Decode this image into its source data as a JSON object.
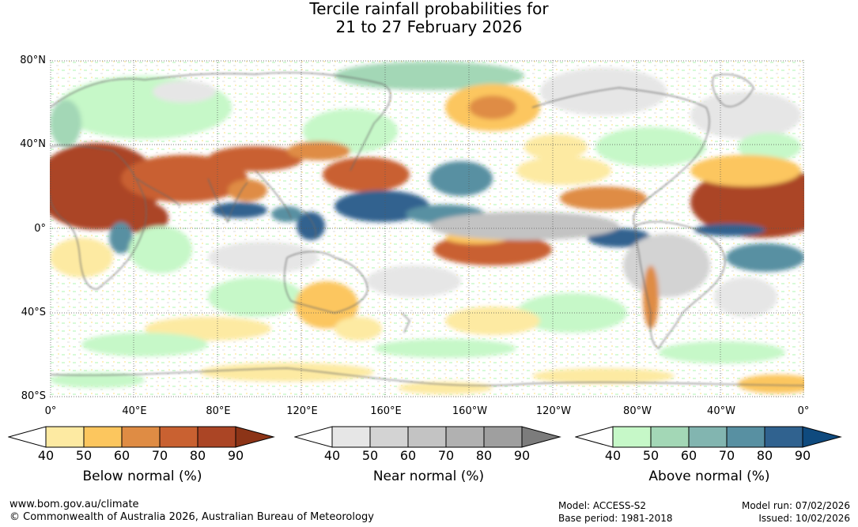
{
  "title": {
    "line1": "Tercile rainfall probabilities for",
    "line2": "21 to 27 February 2026"
  },
  "map": {
    "lat_labels": [
      "80°N",
      "40°N",
      "0°",
      "40°S",
      "80°S"
    ],
    "lon_labels": [
      "0°",
      "40°E",
      "80°E",
      "120°E",
      "160°E",
      "160°W",
      "120°W",
      "80°W",
      "40°W",
      "0°"
    ]
  },
  "legends": [
    {
      "title": "Below normal (%)",
      "ticks": [
        "40",
        "50",
        "60",
        "70",
        "80",
        "90"
      ],
      "colors": [
        "#ffffff",
        "#fdeaa2",
        "#fcc65e",
        "#df8c44",
        "#c96131",
        "#ab4525",
        "#8c3417"
      ]
    },
    {
      "title": "Near normal (%)",
      "ticks": [
        "40",
        "50",
        "60",
        "70",
        "80",
        "90"
      ],
      "colors": [
        "#ffffff",
        "#e6e6e6",
        "#d3d3d3",
        "#c3c3c3",
        "#b1b1b1",
        "#9f9f9f",
        "#7c7c7c"
      ]
    },
    {
      "title": "Above normal (%)",
      "ticks": [
        "40",
        "50",
        "60",
        "70",
        "80",
        "90"
      ],
      "colors": [
        "#ffffff",
        "#c6f8c8",
        "#a3d7b6",
        "#82b5b0",
        "#5890a2",
        "#30628f",
        "#0f4a7e"
      ]
    }
  ],
  "footer": {
    "website": "www.bom.gov.au/climate",
    "copyright": "© Commonwealth of Australia 2026, Australian Bureau of Meteorology",
    "model": "Model: ACCESS-S2",
    "base_period": "Base period: 1981-2018",
    "model_run": "Model run: 07/02/2026",
    "issued": "Issued: 10/02/2026"
  }
}
